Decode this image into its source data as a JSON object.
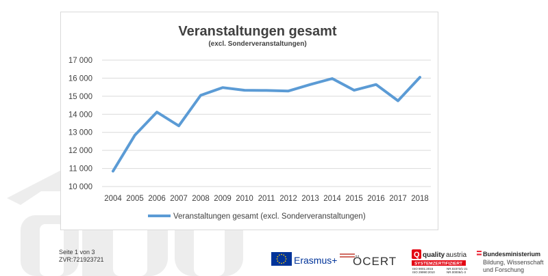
{
  "chart_data": {
    "type": "line",
    "title": "Veranstaltungen gesamt",
    "subtitle": "(excl. Sonderveranstaltungen)",
    "x": [
      "2004",
      "2005",
      "2006",
      "2007",
      "2008",
      "2009",
      "2010",
      "2011",
      "2012",
      "2013",
      "2014",
      "2015",
      "2016",
      "2017",
      "2018"
    ],
    "series": [
      {
        "name": "Veranstaltungen gesamt (excl. Sonderveranstaltungen)",
        "values": [
          10850,
          12850,
          14120,
          13360,
          15050,
          15480,
          15330,
          15320,
          15290,
          15650,
          15980,
          15330,
          15650,
          14750,
          16050
        ],
        "color": "#5b9bd5"
      }
    ],
    "ylim": [
      10000,
      17000
    ],
    "yticks": [
      10000,
      11000,
      12000,
      13000,
      14000,
      15000,
      16000,
      17000
    ],
    "ytick_labels": [
      "10 000",
      "11 000",
      "12 000",
      "13 000",
      "14 000",
      "15 000",
      "16 000",
      "17 000"
    ],
    "grid": true,
    "legend_position": "bottom"
  },
  "footer": {
    "page": "Seite 1 von 3",
    "zvr": "ZVR:721923721"
  },
  "logos": {
    "erasmus": "Erasmus+",
    "oecert": "ÖCERT",
    "quality_brand_a": "quality",
    "quality_brand_b": "austria",
    "quality_banner": "SYSTEMZERTIFIZIERT",
    "quality_iso1": "ISO 9001:2015",
    "quality_iso2": "ISO 29990:2010",
    "quality_nr1": "NR.02373/1-21",
    "quality_nr2": "NR.00006/1-3",
    "ministry_line1": "Bundesministerium",
    "ministry_line2": "Bildung, Wissenschaft",
    "ministry_line3": "und Forschung"
  },
  "colors": {
    "line": "#5b9bd5",
    "grid": "#d9d9d9",
    "text": "#404040",
    "eu_blue": "#003399",
    "eu_star": "#ffcc00",
    "quality_red": "#e30613",
    "austria_red": "#ed2939"
  }
}
